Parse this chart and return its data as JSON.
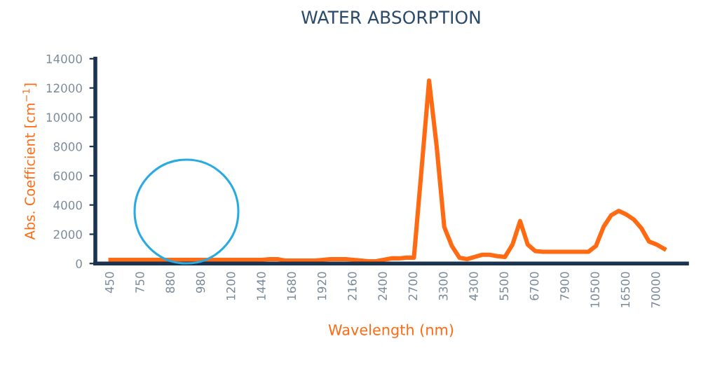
{
  "chart_data": {
    "type": "line",
    "title": "WATER ABSORPTION",
    "xlabel": "Wavelength (nm)",
    "ylabel": "Abs. Coefficient [cm$^{−1}$]",
    "categories": [
      "450",
      null,
      null,
      null,
      "750",
      null,
      null,
      null,
      "880",
      null,
      null,
      null,
      "980",
      null,
      null,
      null,
      "1200",
      null,
      null,
      null,
      "1440",
      null,
      null,
      null,
      "1680",
      null,
      null,
      null,
      "1920",
      null,
      null,
      null,
      "2160",
      null,
      null,
      null,
      "2400",
      null,
      null,
      null,
      "2700",
      null,
      null,
      null,
      "3300",
      null,
      null,
      null,
      "4300",
      null,
      null,
      null,
      "5500",
      null,
      null,
      null,
      "6700",
      null,
      null,
      null,
      "7900",
      null,
      null,
      null,
      "10500",
      null,
      null,
      null,
      "16500",
      null,
      null,
      null,
      "70000",
      null
    ],
    "series": [
      {
        "color": "#ff6a13",
        "values": [
          250,
          250,
          250,
          250,
          250,
          250,
          250,
          250,
          250,
          250,
          250,
          250,
          250,
          250,
          250,
          250,
          250,
          250,
          250,
          250,
          250,
          300,
          300,
          200,
          200,
          200,
          200,
          200,
          250,
          300,
          300,
          300,
          250,
          200,
          150,
          150,
          250,
          350,
          350,
          400,
          400,
          6400,
          12500,
          8000,
          2500,
          1200,
          400,
          300,
          450,
          600,
          600,
          500,
          450,
          1300,
          2900,
          1300,
          850,
          800,
          800,
          800,
          800,
          800,
          800,
          800,
          1200,
          2500,
          3300,
          3600,
          3350,
          3000,
          2400,
          1500,
          1300,
          1000
        ]
      }
    ],
    "ylim": [
      0,
      14000
    ],
    "yticks": [
      0,
      2000,
      4000,
      6000,
      8000,
      10000,
      12000,
      14000
    ],
    "grid": false,
    "legend": false,
    "marker": "none",
    "line_style": "solid"
  }
}
